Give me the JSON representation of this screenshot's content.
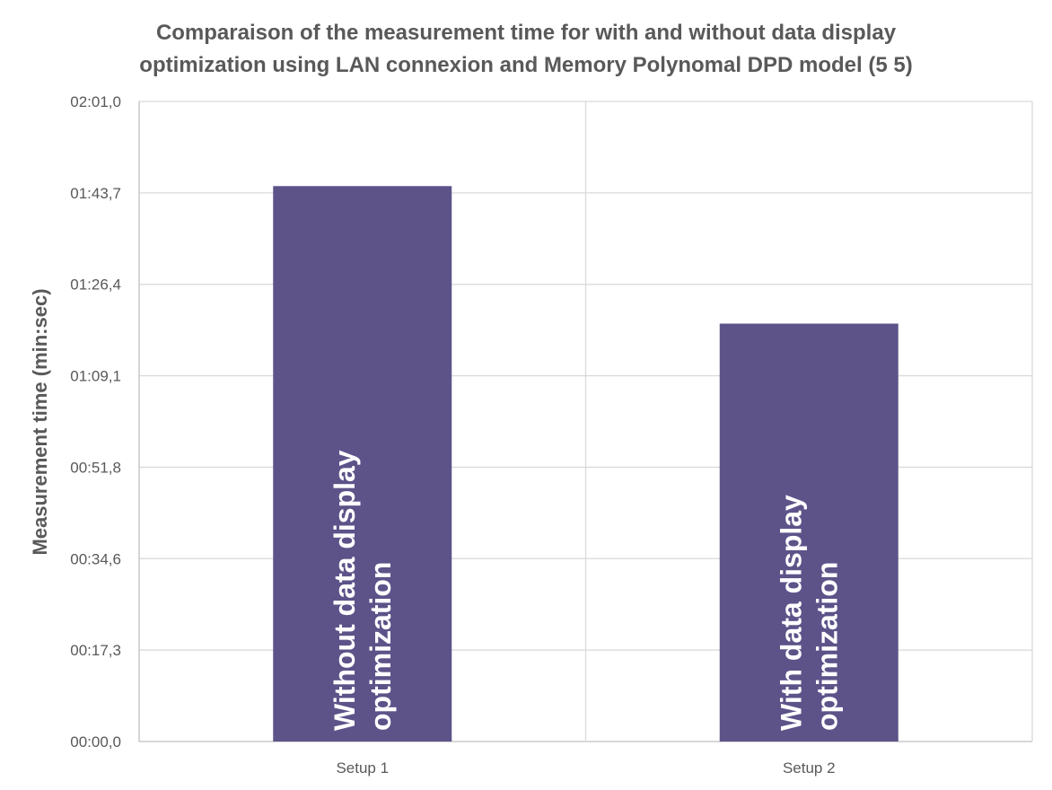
{
  "chart_data": {
    "type": "bar",
    "title": "Comparaison of the measurement time for with and without data display optimization using LAN connexion and Memory Polynomal DPD model (5 5)",
    "title_lines": [
      "Comparaison of the measurement time for with and without data display",
      "optimization using LAN connexion and Memory Polynomal DPD model (5 5)"
    ],
    "xlabel": "",
    "ylabel": "Measurement time (min:sec)",
    "categories": [
      "Setup 1",
      "Setup 2"
    ],
    "series": [
      {
        "values_seconds": [
          105.0,
          79.0
        ],
        "bar_labels": [
          [
            "Without data display",
            "optimization"
          ],
          [
            "With data display",
            "optimization"
          ]
        ]
      }
    ],
    "y_ticks": [
      "00:00,0",
      "00:17,3",
      "00:34,6",
      "00:51,8",
      "01:09,1",
      "01:26,4",
      "01:43,7",
      "02:01,0"
    ],
    "ylim_seconds": [
      0,
      121.0
    ],
    "grid": true,
    "legend": "none",
    "colors": {
      "bar": "#5d5389",
      "grid": "#d9d9d9",
      "axis": "#bfbfbf",
      "text": "#595959",
      "bar_text": "#ffffff"
    }
  }
}
